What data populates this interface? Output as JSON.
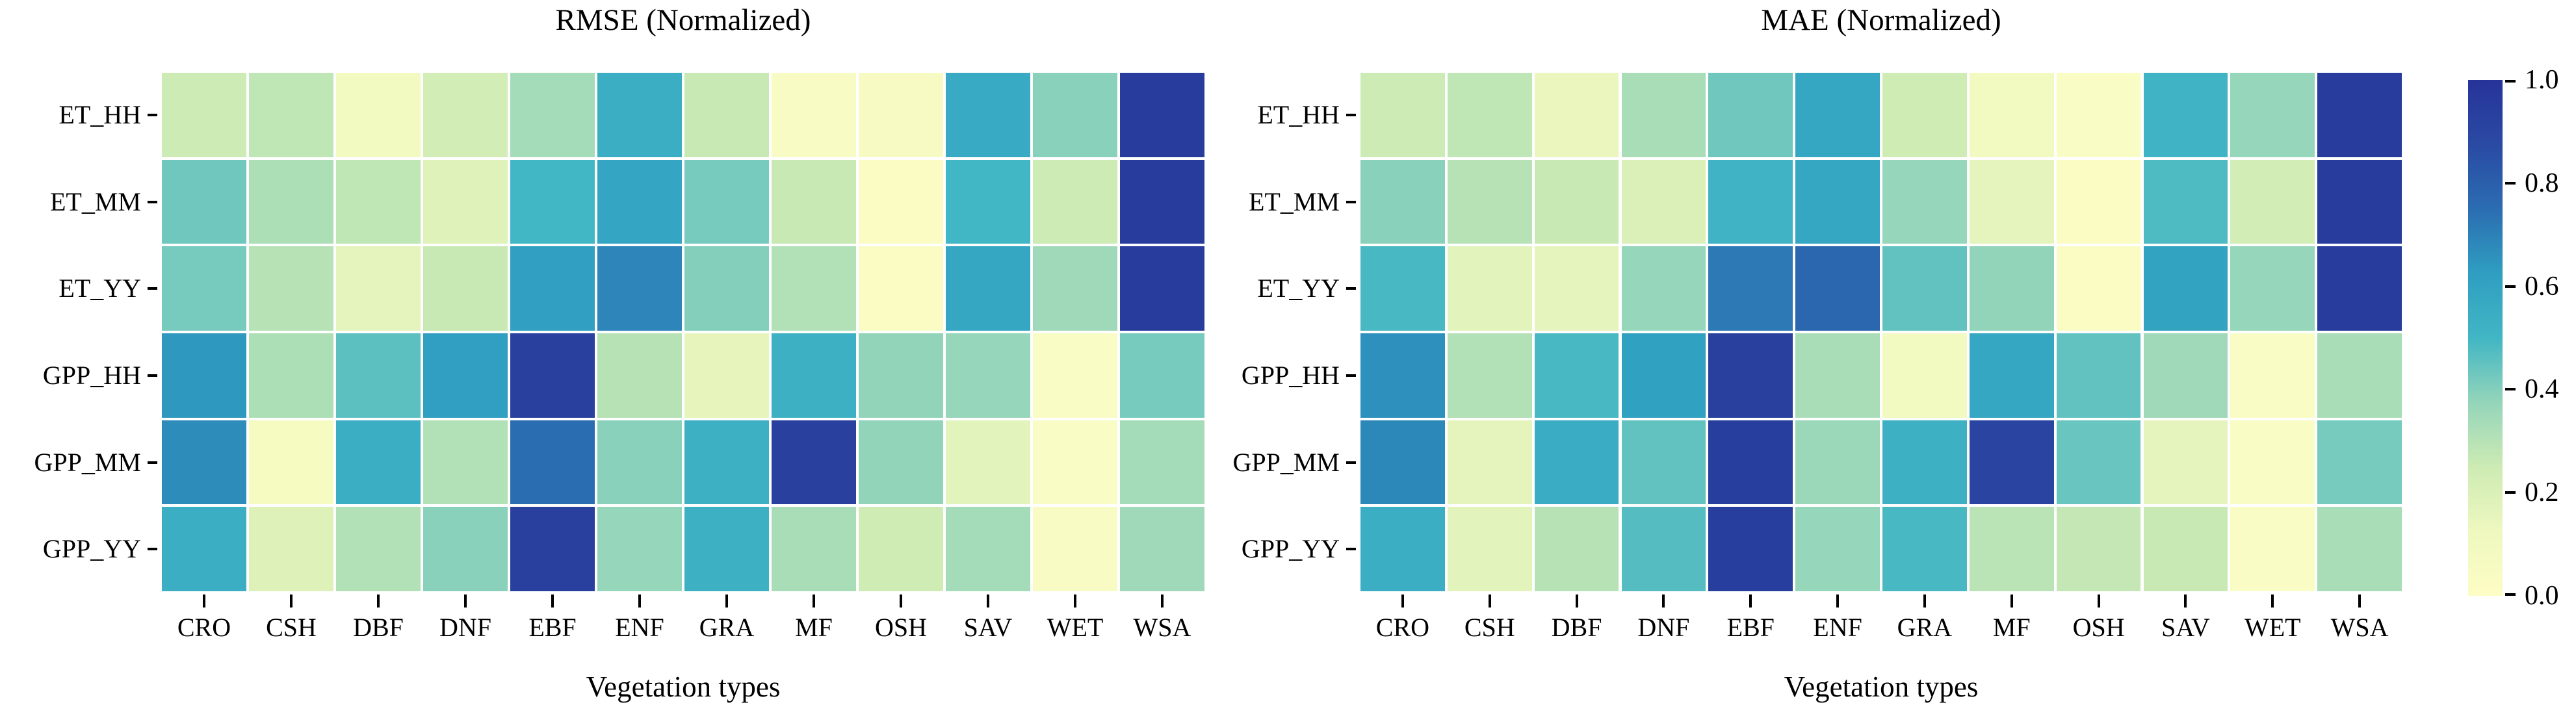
{
  "figure": {
    "background_color": "#ffffff",
    "text_color": "#000000"
  },
  "chart_data": [
    {
      "type": "heatmap",
      "title": "RMSE (Normalized)",
      "xlabel": "Vegetation types",
      "x_categories": [
        "CRO",
        "CSH",
        "DBF",
        "DNF",
        "EBF",
        "ENF",
        "GRA",
        "MF",
        "OSH",
        "SAV",
        "WET",
        "WSA"
      ],
      "y_categories": [
        "ET_HH",
        "ET_MM",
        "ET_YY",
        "GPP_HH",
        "GPP_MM",
        "GPP_YY"
      ],
      "value_range": [
        0,
        1
      ],
      "colormap": "YlGnBu",
      "grid_line_color": "#ffffff",
      "values": [
        [
          0.25,
          0.28,
          0.08,
          0.23,
          0.34,
          0.54,
          0.26,
          0.04,
          0.05,
          0.56,
          0.39,
          0.95
        ],
        [
          0.43,
          0.32,
          0.28,
          0.18,
          0.5,
          0.59,
          0.42,
          0.26,
          0.02,
          0.5,
          0.25,
          0.95
        ],
        [
          0.42,
          0.3,
          0.16,
          0.26,
          0.62,
          0.69,
          0.4,
          0.31,
          0.02,
          0.58,
          0.35,
          0.95
        ],
        [
          0.64,
          0.32,
          0.46,
          0.62,
          0.93,
          0.3,
          0.15,
          0.53,
          0.38,
          0.37,
          0.03,
          0.42
        ],
        [
          0.67,
          0.06,
          0.54,
          0.31,
          0.75,
          0.39,
          0.53,
          0.93,
          0.38,
          0.17,
          0.03,
          0.34
        ],
        [
          0.54,
          0.19,
          0.31,
          0.39,
          0.93,
          0.37,
          0.53,
          0.33,
          0.24,
          0.34,
          0.04,
          0.35
        ]
      ]
    },
    {
      "type": "heatmap",
      "title": "MAE (Normalized)",
      "xlabel": "Vegetation types",
      "x_categories": [
        "CRO",
        "CSH",
        "DBF",
        "DNF",
        "EBF",
        "ENF",
        "GRA",
        "MF",
        "OSH",
        "SAV",
        "WET",
        "WSA"
      ],
      "y_categories": [
        "ET_HH",
        "ET_MM",
        "ET_YY",
        "GPP_HH",
        "GPP_MM",
        "GPP_YY"
      ],
      "value_range": [
        0,
        1
      ],
      "colormap": "YlGnBu",
      "grid_line_color": "#ffffff",
      "values": [
        [
          0.25,
          0.28,
          0.14,
          0.33,
          0.43,
          0.58,
          0.24,
          0.09,
          0.03,
          0.51,
          0.37,
          0.95
        ],
        [
          0.39,
          0.3,
          0.26,
          0.2,
          0.51,
          0.58,
          0.37,
          0.16,
          0.02,
          0.48,
          0.23,
          0.95
        ],
        [
          0.49,
          0.17,
          0.16,
          0.37,
          0.72,
          0.77,
          0.45,
          0.38,
          0.02,
          0.6,
          0.37,
          0.95
        ],
        [
          0.66,
          0.31,
          0.49,
          0.61,
          0.93,
          0.33,
          0.09,
          0.58,
          0.45,
          0.35,
          0.03,
          0.33
        ],
        [
          0.68,
          0.16,
          0.55,
          0.45,
          0.94,
          0.36,
          0.53,
          0.9,
          0.44,
          0.16,
          0.03,
          0.42
        ],
        [
          0.54,
          0.17,
          0.3,
          0.47,
          0.94,
          0.37,
          0.49,
          0.29,
          0.27,
          0.26,
          0.03,
          0.33
        ]
      ]
    }
  ],
  "colorbar": {
    "ticks": [
      {
        "label": "1.0",
        "value": 1.0
      },
      {
        "label": "0.8",
        "value": 0.8
      },
      {
        "label": "0.6",
        "value": 0.6
      },
      {
        "label": "0.4",
        "value": 0.4
      },
      {
        "label": "0.2",
        "value": 0.2
      },
      {
        "label": "0.0",
        "value": 0.0
      }
    ],
    "gradient_stops": [
      {
        "v": 0.0,
        "c": "#fdfdc5"
      },
      {
        "v": 0.125,
        "c": "#eef8bf"
      },
      {
        "v": 0.25,
        "c": "#cdebb4"
      },
      {
        "v": 0.375,
        "c": "#94d5ba"
      },
      {
        "v": 0.5,
        "c": "#41b6c4"
      },
      {
        "v": 0.625,
        "c": "#2f9ec1"
      },
      {
        "v": 0.75,
        "c": "#2b6db1"
      },
      {
        "v": 0.875,
        "c": "#2a4aa3"
      },
      {
        "v": 1.0,
        "c": "#27339a"
      }
    ]
  }
}
